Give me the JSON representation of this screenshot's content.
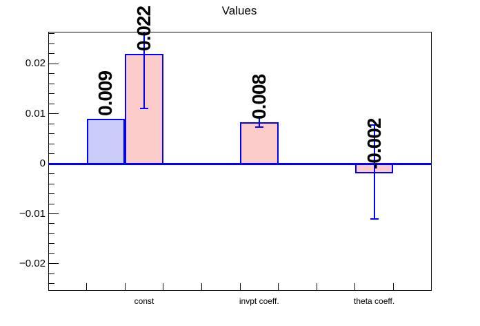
{
  "title": "Values",
  "chart_data": {
    "type": "bar",
    "title": "Values",
    "xlabel": "",
    "ylabel": "",
    "grid": false,
    "legend": "none",
    "n_bins": 10,
    "ylim": [
      -0.0254,
      0.0264
    ],
    "y_major_ticks": [
      {
        "value": 0.02,
        "label": "0.02"
      },
      {
        "value": 0.01,
        "label": "0.01"
      },
      {
        "value": 0.0,
        "label": "0"
      },
      {
        "value": -0.01,
        "label": "−0.01"
      },
      {
        "value": -0.02,
        "label": "−0.02"
      }
    ],
    "y_minor_step": 0.002,
    "categories": [
      {
        "bin": 3,
        "label": "const"
      },
      {
        "bin": 6,
        "label": "invpt coeff."
      },
      {
        "bin": 9,
        "label": "theta coeff."
      }
    ],
    "bars": [
      {
        "bin": 2,
        "value": 0.009,
        "label": "0.009",
        "series": "blue"
      },
      {
        "bin": 3,
        "value": 0.022,
        "label": "0.022",
        "error": 0.011,
        "series": "red"
      },
      {
        "bin": 6,
        "value": 0.0083,
        "label": "0.008",
        "error": 0.001,
        "series": "red"
      },
      {
        "bin": 9,
        "value": -0.0016,
        "label": "-0.002",
        "error": 0.0094,
        "series": "red"
      }
    ],
    "colors": {
      "blue_fill": "#ccccf9",
      "red_fill": "#fcccca",
      "bar_border": "#0000ff",
      "error_bar": "#0000ff",
      "zero_line": "#0000ff",
      "axis": "#000000",
      "text": "#000000",
      "background": "#ffffff"
    }
  }
}
